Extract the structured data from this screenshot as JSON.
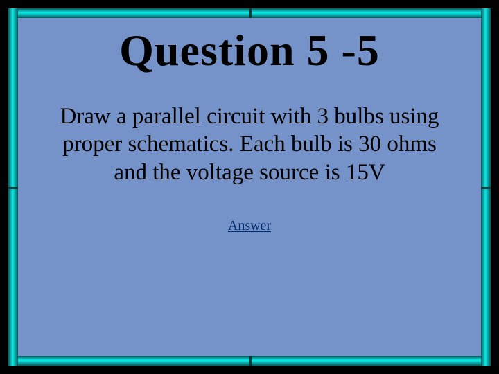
{
  "slide": {
    "title_text": "Question 5 -5",
    "title_fontsize": 64,
    "title_color": "#000000",
    "body_text": "Draw a parallel circuit with 3 bulbs using proper schematics. Each bulb is 30 ohms and the voltage source is 15V",
    "body_fontsize": 33,
    "body_color": "#000000",
    "answer_label": "Answer",
    "answer_fontsize": 20,
    "answer_color": "#002a6a",
    "background_color": "#7593c8",
    "frame_color": "#0ce8e8",
    "outer_background": "#000000"
  }
}
